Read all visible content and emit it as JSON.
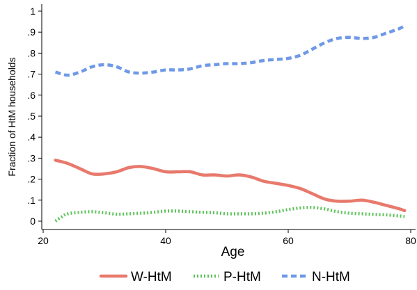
{
  "chart_data": {
    "type": "line",
    "xlabel": "Age",
    "ylabel": "Fraction of HtM households",
    "xlim": [
      20,
      80
    ],
    "ylim": [
      0,
      1
    ],
    "xticks": [
      20,
      40,
      60,
      80
    ],
    "yticks": [
      0,
      0.1,
      0.2,
      0.3,
      0.4,
      0.5,
      0.6,
      0.7,
      0.8,
      0.9,
      1
    ],
    "xtick_labels": [
      "20",
      "40",
      "60",
      "80"
    ],
    "ytick_labels": [
      "0",
      ".1",
      ".2",
      ".3",
      ".4",
      ".5",
      ".6",
      ".7",
      ".8",
      ".9",
      "1"
    ],
    "grid": false,
    "legend_position": "bottom",
    "series": [
      {
        "name": "W-HtM",
        "color": "#e8796c",
        "dash": "solid",
        "x": [
          22,
          24,
          26,
          28,
          30,
          32,
          34,
          36,
          38,
          40,
          42,
          44,
          46,
          48,
          50,
          52,
          54,
          56,
          58,
          60,
          62,
          64,
          66,
          68,
          70,
          72,
          74,
          76,
          78,
          79
        ],
        "y": [
          0.29,
          0.275,
          0.25,
          0.225,
          0.225,
          0.235,
          0.255,
          0.26,
          0.25,
          0.235,
          0.235,
          0.235,
          0.22,
          0.22,
          0.215,
          0.22,
          0.21,
          0.19,
          0.18,
          0.17,
          0.155,
          0.13,
          0.105,
          0.095,
          0.095,
          0.1,
          0.09,
          0.075,
          0.06,
          0.05
        ]
      },
      {
        "name": "P-HtM",
        "color": "#5dc45a",
        "dash": "dot",
        "x": [
          22,
          23,
          24,
          26,
          28,
          30,
          32,
          34,
          36,
          38,
          40,
          42,
          44,
          46,
          48,
          50,
          52,
          54,
          56,
          58,
          60,
          62,
          64,
          66,
          68,
          70,
          72,
          74,
          76,
          78,
          79
        ],
        "y": [
          0.0,
          0.02,
          0.035,
          0.042,
          0.045,
          0.04,
          0.033,
          0.035,
          0.038,
          0.042,
          0.048,
          0.048,
          0.045,
          0.042,
          0.04,
          0.035,
          0.035,
          0.035,
          0.038,
          0.045,
          0.055,
          0.063,
          0.065,
          0.058,
          0.045,
          0.038,
          0.035,
          0.032,
          0.03,
          0.025,
          0.022
        ]
      },
      {
        "name": "N-HtM",
        "color": "#6f99e8",
        "dash": "dash",
        "x": [
          22,
          24,
          26,
          28,
          30,
          32,
          34,
          36,
          38,
          40,
          42,
          44,
          46,
          48,
          50,
          52,
          54,
          56,
          58,
          60,
          62,
          64,
          66,
          68,
          70,
          72,
          74,
          76,
          78,
          79
        ],
        "y": [
          0.71,
          0.695,
          0.71,
          0.735,
          0.745,
          0.735,
          0.71,
          0.705,
          0.71,
          0.72,
          0.72,
          0.725,
          0.74,
          0.745,
          0.75,
          0.75,
          0.755,
          0.765,
          0.77,
          0.775,
          0.79,
          0.82,
          0.85,
          0.87,
          0.875,
          0.87,
          0.875,
          0.895,
          0.915,
          0.93
        ]
      }
    ]
  }
}
